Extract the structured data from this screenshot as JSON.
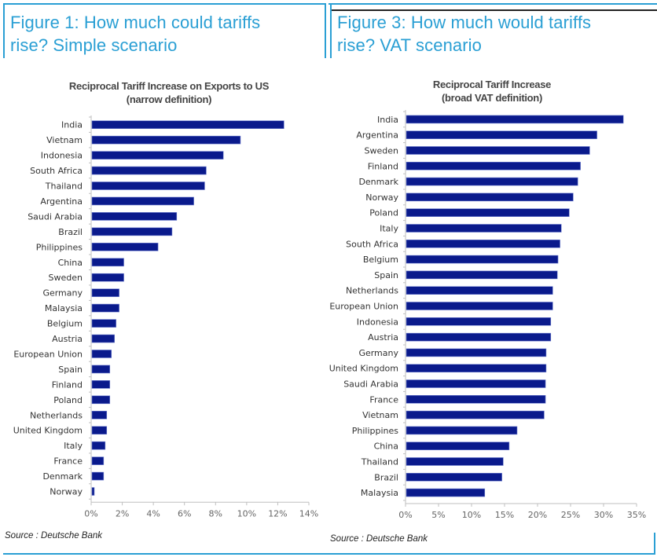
{
  "figures": [
    {
      "title_line1": "Figure 1: How much could tariffs",
      "title_line2": "rise? Simple scenario",
      "chart_title_line1": "Reciprocal Tariff Increase on Exports to US",
      "chart_title_line2": "(narrow definition)",
      "source": "Source : Deutsche Bank"
    },
    {
      "title_line1": "Figure 3: How much would tariffs",
      "title_line2": "rise? VAT scenario",
      "chart_title_line1": "Reciprocal Tariff Increase",
      "chart_title_line2": "(broad VAT definition)",
      "source": "Source : Deutsche Bank"
    }
  ],
  "colors": {
    "accent": "#2a9fd4",
    "bar": "#0a1a8c",
    "axis": "#bfbfbf",
    "label": "#333333",
    "tick_label": "#666666"
  },
  "chart_data": [
    {
      "type": "bar",
      "orientation": "horizontal",
      "title": "Reciprocal Tariff Increase on Exports to US (narrow definition)",
      "xlabel": "",
      "ylabel": "",
      "xlim": [
        0,
        14
      ],
      "xticks": [
        0,
        2,
        4,
        6,
        8,
        10,
        12,
        14
      ],
      "xtick_labels": [
        "0%",
        "2%",
        "4%",
        "6%",
        "8%",
        "10%",
        "12%",
        "14%"
      ],
      "grid": false,
      "categories": [
        "India",
        "Vietnam",
        "Indonesia",
        "South Africa",
        "Thailand",
        "Argentina",
        "Saudi Arabia",
        "Brazil",
        "Philippines",
        "China",
        "Sweden",
        "Germany",
        "Malaysia",
        "Belgium",
        "Austria",
        "European Union",
        "Spain",
        "Finland",
        "Poland",
        "Netherlands",
        "United Kingdom",
        "Italy",
        "France",
        "Denmark",
        "Norway"
      ],
      "values": [
        12.4,
        9.6,
        8.5,
        7.4,
        7.3,
        6.6,
        5.5,
        5.2,
        4.3,
        2.1,
        2.1,
        1.8,
        1.8,
        1.6,
        1.5,
        1.3,
        1.2,
        1.2,
        1.2,
        1.0,
        1.0,
        0.9,
        0.8,
        0.8,
        0.2
      ],
      "unit": "%"
    },
    {
      "type": "bar",
      "orientation": "horizontal",
      "title": "Reciprocal Tariff Increase (broad VAT definition)",
      "xlabel": "",
      "ylabel": "",
      "xlim": [
        0,
        35
      ],
      "xticks": [
        0,
        5,
        10,
        15,
        20,
        25,
        30,
        35
      ],
      "xtick_labels": [
        "0%",
        "5%",
        "10%",
        "15%",
        "20%",
        "25%",
        "30%",
        "35%"
      ],
      "grid": false,
      "categories": [
        "India",
        "Argentina",
        "Sweden",
        "Finland",
        "Denmark",
        "Norway",
        "Poland",
        "Italy",
        "South Africa",
        "Belgium",
        "Spain",
        "Netherlands",
        "European Union",
        "Indonesia",
        "Austria",
        "Germany",
        "United Kingdom",
        "Saudi Arabia",
        "France",
        "Vietnam",
        "Philippines",
        "China",
        "Thailand",
        "Brazil",
        "Malaysia"
      ],
      "values": [
        33.0,
        29.0,
        27.9,
        26.5,
        26.1,
        25.4,
        24.8,
        23.6,
        23.4,
        23.1,
        23.0,
        22.3,
        22.3,
        22.0,
        22.0,
        21.3,
        21.3,
        21.2,
        21.2,
        21.0,
        16.9,
        15.7,
        14.8,
        14.6,
        12.0
      ],
      "unit": "%"
    }
  ]
}
